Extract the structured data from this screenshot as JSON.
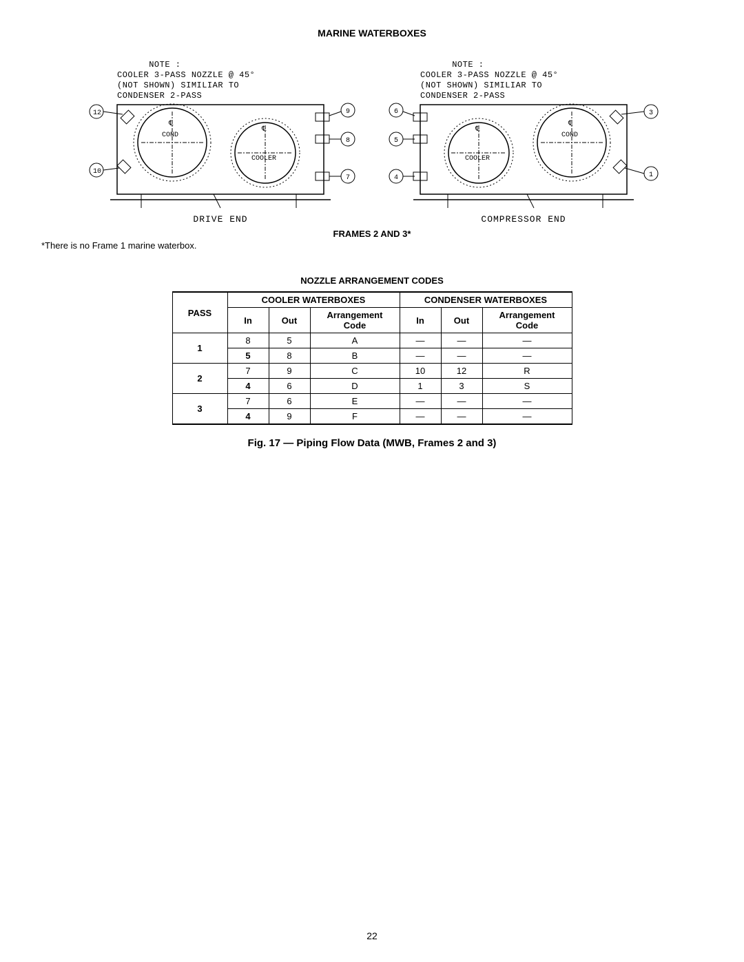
{
  "title": "MARINE WATERBOXES",
  "note_lines": [
    "NOTE :",
    "COOLER 3-PASS NOZZLE @ 45°",
    "(NOT SHOWN) SIMILIAR TO",
    "CONDENSER 2-PASS"
  ],
  "drive_end_label": "DRIVE END",
  "compressor_end_label": "COMPRESSOR END",
  "frames_label": "FRAMES 2 AND 3*",
  "footnote": "*There is no Frame 1 marine waterbox.",
  "table_title": "NOZZLE ARRANGEMENT CODES",
  "caption": "Fig. 17 — Piping Flow Data (MWB, Frames 2 and 3)",
  "page_number": "22",
  "cooler_header": "COOLER WATERBOXES",
  "condenser_header": "CONDENSER WATERBOXES",
  "pass_header": "PASS",
  "in_header": "In",
  "out_header": "Out",
  "arr_header_l1": "Arrangement",
  "arr_header_l2": "Code",
  "diagram_labels": {
    "cond": "COND",
    "cooler": "COOLER",
    "cl": "℄"
  },
  "left_callouts": {
    "top_left": "12",
    "mid_left": "10",
    "top_right": "9",
    "mid_right": "8",
    "bot_right": "7"
  },
  "right_callouts": {
    "top_left": "6",
    "mid_left": "5",
    "bot_left": "4",
    "top_right": "3",
    "bot_right": "1"
  },
  "dash": "—",
  "rows": [
    {
      "pass": "1",
      "sub": [
        {
          "cin": "8",
          "cout": "5",
          "ccode": "A",
          "din": "—",
          "dout": "—",
          "dcode": "—"
        },
        {
          "cin": "5",
          "cout": "8",
          "ccode": "B",
          "din": "—",
          "dout": "—",
          "dcode": "—"
        }
      ]
    },
    {
      "pass": "2",
      "sub": [
        {
          "cin": "7",
          "cout": "9",
          "ccode": "C",
          "din": "10",
          "dout": "12",
          "dcode": "R"
        },
        {
          "cin": "4",
          "cout": "6",
          "ccode": "D",
          "din": "1",
          "dout": "3",
          "dcode": "S"
        }
      ]
    },
    {
      "pass": "3",
      "sub": [
        {
          "cin": "7",
          "cout": "6",
          "ccode": "E",
          "din": "—",
          "dout": "—",
          "dcode": "—"
        },
        {
          "cin": "4",
          "cout": "9",
          "ccode": "F",
          "din": "—",
          "dout": "—",
          "dcode": "—"
        }
      ]
    }
  ],
  "col_widths": {
    "pass": 80,
    "in": 60,
    "out": 60,
    "code": 130
  }
}
